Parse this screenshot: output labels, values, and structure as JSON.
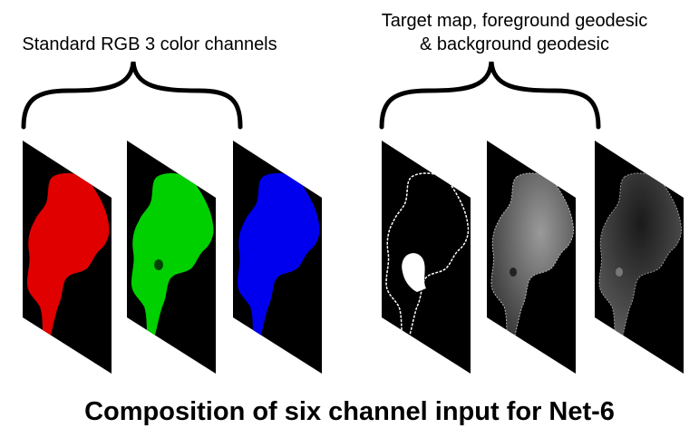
{
  "labels": {
    "rgb_group": "Standard RGB 3 color channels",
    "geodesic_line1": "Target map, foreground geodesic",
    "geodesic_line2": "& background geodesic"
  },
  "title": "Composition of six channel input for Net-6",
  "colors": {
    "red_channel": "#e00000",
    "green_channel": "#00d000",
    "blue_channel": "#0000ee",
    "panel_background": "#000000"
  }
}
